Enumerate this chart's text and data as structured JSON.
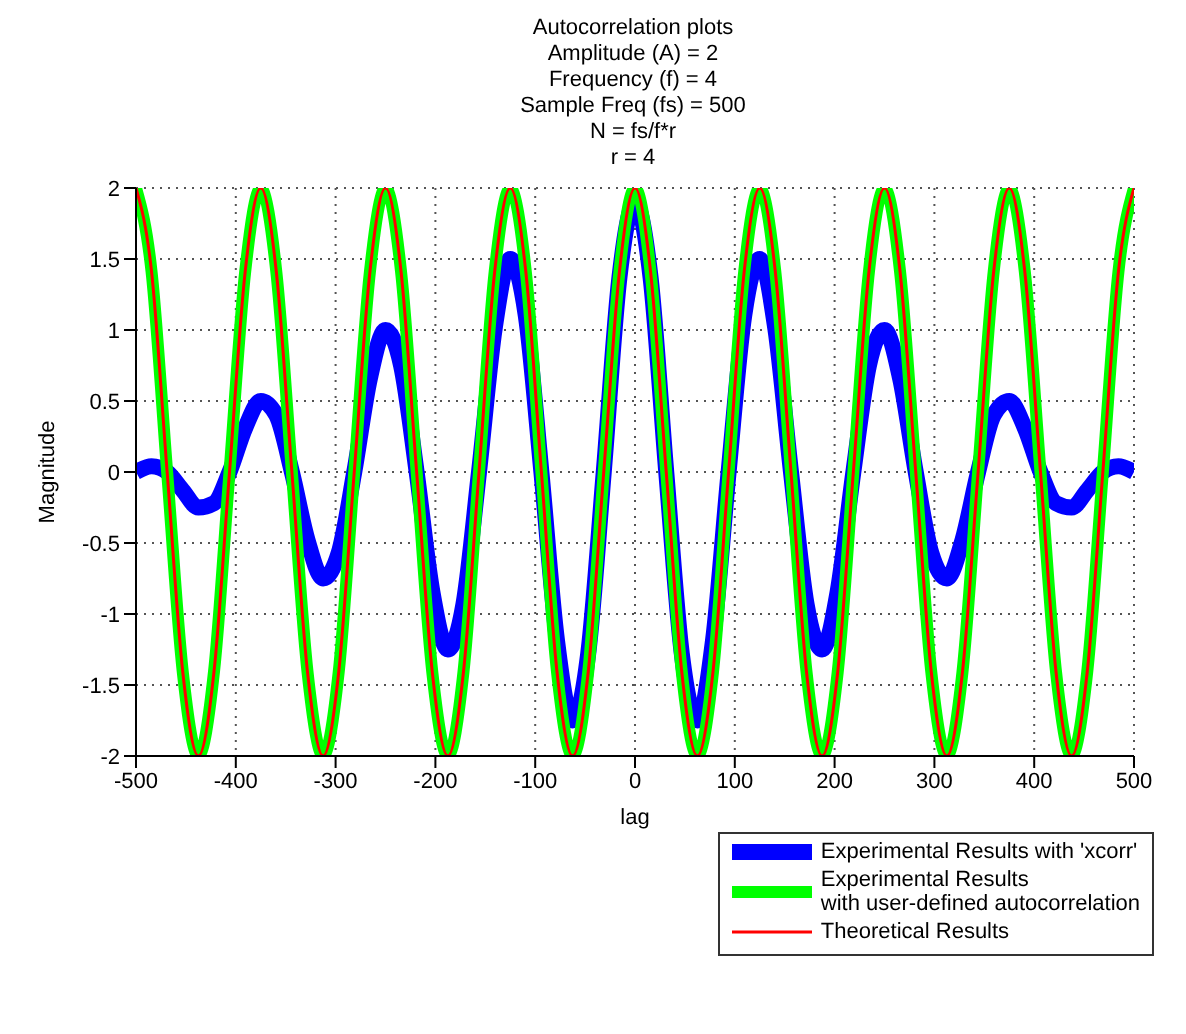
{
  "chart_data": {
    "type": "line",
    "title": "Autocorrelation plots\nAmplitude (A) = 2\nFrequency (f) = 4\nSample Freq (fs) = 500\nN = fs/f*r\nr = 4",
    "xlabel": "lag",
    "ylabel": "Magnitude",
    "x": [
      -500,
      -484.4,
      -468.8,
      -453.1,
      -437.5,
      -421.9,
      -406.3,
      -390.6,
      -375,
      -359.4,
      -343.8,
      -328.1,
      -312.5,
      -296.9,
      -281.3,
      -265.6,
      -250,
      -234.4,
      -218.8,
      -203.1,
      -187.5,
      -171.9,
      -156.3,
      -140.6,
      -125,
      -109.4,
      -93.8,
      -78.1,
      -62.5,
      -46.9,
      -31.3,
      -15.6,
      0,
      15.6,
      31.3,
      46.9,
      62.5,
      78.1,
      93.8,
      109.4,
      125,
      140.6,
      156.3,
      171.9,
      187.5,
      203.1,
      218.8,
      234.4,
      250,
      265.6,
      281.3,
      296.9,
      312.5,
      328.1,
      343.8,
      359.4,
      375,
      390.6,
      406.3,
      421.9,
      437.5,
      453.1,
      468.8,
      484.4,
      500
    ],
    "series": [
      {
        "name": "Experimental Results with 'xcorr'",
        "color": "#0000ff",
        "values": [
          0,
          0.04,
          0,
          -0.13,
          -0.25,
          -0.22,
          0,
          0.31,
          0.5,
          0.4,
          0,
          -0.48,
          -0.75,
          -0.57,
          0,
          0.66,
          1,
          0.75,
          0,
          -0.84,
          -1.25,
          -0.93,
          0,
          1.01,
          1.5,
          1.1,
          0,
          -1.19,
          -1.75,
          -1.28,
          0,
          1.37,
          1.9,
          1.37,
          0,
          -1.28,
          -1.75,
          -1.19,
          0,
          1.1,
          1.5,
          1.01,
          0,
          -0.93,
          -1.25,
          -0.84,
          0,
          0.75,
          1,
          0.66,
          0,
          -0.57,
          -0.75,
          -0.48,
          0,
          0.4,
          0.5,
          0.31,
          0,
          -0.22,
          -0.25,
          -0.13,
          0,
          0.04,
          0
        ]
      },
      {
        "name": "Experimental Results\nwith user-defined autocorrelation",
        "color": "#00ff00",
        "values": [
          2,
          1.41,
          0,
          -1.41,
          -2,
          -1.41,
          0,
          1.41,
          2,
          1.41,
          0,
          -1.41,
          -2,
          -1.41,
          0,
          1.41,
          2,
          1.41,
          0,
          -1.41,
          -2,
          -1.41,
          0,
          1.41,
          2,
          1.41,
          0,
          -1.41,
          -2,
          -1.41,
          0,
          1.41,
          2,
          1.41,
          0,
          -1.41,
          -2,
          -1.41,
          0,
          1.41,
          2,
          1.41,
          0,
          -1.41,
          -2,
          -1.41,
          0,
          1.41,
          2,
          1.41,
          0,
          -1.41,
          -2,
          -1.41,
          0,
          1.41,
          2,
          1.41,
          0,
          -1.41,
          -2,
          -1.41,
          0,
          1.41,
          2
        ]
      },
      {
        "name": "Theoretical Results",
        "color": "#ff0000",
        "values": [
          2,
          1.41,
          0,
          -1.41,
          -2,
          -1.41,
          0,
          1.41,
          2,
          1.41,
          0,
          -1.41,
          -2,
          -1.41,
          0,
          1.41,
          2,
          1.41,
          0,
          -1.41,
          -2,
          -1.41,
          0,
          1.41,
          2,
          1.41,
          0,
          -1.41,
          -2,
          -1.41,
          0,
          1.41,
          2,
          1.41,
          0,
          -1.41,
          -2,
          -1.41,
          0,
          1.41,
          2,
          1.41,
          0,
          -1.41,
          -2,
          -1.41,
          0,
          1.41,
          2,
          1.41,
          0,
          -1.41,
          -2,
          -1.41,
          0,
          1.41,
          2,
          1.41,
          0,
          -1.41,
          -2,
          -1.41,
          0,
          1.41,
          2
        ]
      }
    ],
    "xlim": [
      -500,
      500
    ],
    "xticks": [
      -500,
      -400,
      -300,
      -200,
      -100,
      0,
      100,
      200,
      300,
      400,
      500
    ],
    "ylim": [
      -2,
      2
    ],
    "yticks": [
      -2,
      -1.5,
      -1,
      -0.5,
      0,
      0.5,
      1,
      1.5,
      2
    ],
    "grid": true,
    "legend": "bottom right",
    "line_style": "solid",
    "marker": "none"
  }
}
